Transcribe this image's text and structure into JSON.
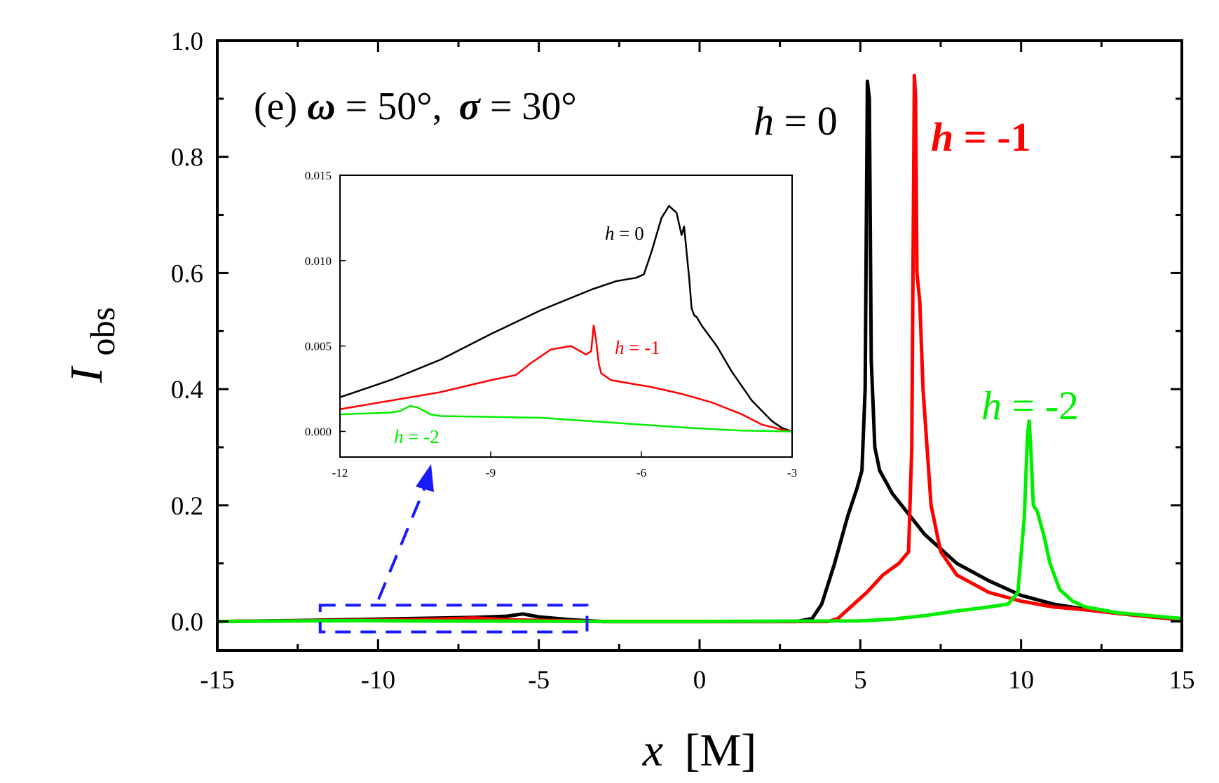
{
  "chart_data": {
    "type": "line",
    "title": "",
    "panel_label": {
      "prefix": "(e) ",
      "omega_symbol": "ω",
      "omega_value": "= 50°,",
      "sigma_symbol": "σ",
      "sigma_value": "= 30°"
    },
    "xlabel": {
      "variable": "x",
      "unit": "[M]"
    },
    "ylabel": {
      "variable": "I",
      "subscript": "obs"
    },
    "xlim": [
      -15,
      15
    ],
    "ylim": [
      -0.05,
      1.0
    ],
    "x_ticks": [
      -15,
      -10,
      -5,
      0,
      5,
      10,
      15
    ],
    "x_tick_labels": [
      "-15",
      "-10",
      "-5",
      "0",
      "5",
      "10",
      "15"
    ],
    "y_ticks": [
      0.0,
      0.2,
      0.4,
      0.6,
      0.8,
      1.0
    ],
    "y_tick_labels": [
      "0.0",
      "0.2",
      "0.4",
      "0.6",
      "0.8",
      "1.0"
    ],
    "grid": false,
    "series": [
      {
        "name": "h = 0",
        "label_variable": "h",
        "label_value": "= 0",
        "color": "#000000",
        "x": [
          -15,
          -12,
          -9,
          -7,
          -6,
          -5.5,
          -5,
          -4,
          -3,
          0,
          3,
          3.5,
          3.8,
          4.2,
          4.6,
          4.9,
          5.05,
          5.15,
          5.22,
          5.28,
          5.34,
          5.45,
          5.6,
          6,
          7,
          8,
          9,
          10,
          11,
          12,
          13,
          14,
          15
        ],
        "values": [
          0,
          0.002,
          0.005,
          0.007,
          0.009,
          0.013,
          0.008,
          0.003,
          0,
          0,
          0,
          0.005,
          0.03,
          0.1,
          0.18,
          0.23,
          0.26,
          0.4,
          0.93,
          0.9,
          0.45,
          0.3,
          0.26,
          0.22,
          0.15,
          0.1,
          0.07,
          0.045,
          0.03,
          0.021,
          0.014,
          0.008,
          0.003
        ]
      },
      {
        "name": "h = -1",
        "label_variable": "h",
        "label_value": "= -1",
        "color": "#ff0000",
        "x": [
          -15,
          -12,
          -9,
          -7.5,
          -7,
          -6,
          -4,
          -3,
          0,
          4,
          4.3,
          4.7,
          5.2,
          5.7,
          6.2,
          6.5,
          6.6,
          6.68,
          6.72,
          6.76,
          6.85,
          6.95,
          7.2,
          7.5,
          8,
          9,
          10,
          11,
          12,
          13,
          14,
          15
        ],
        "values": [
          0,
          0.0015,
          0.003,
          0.005,
          0.006,
          0.003,
          0.001,
          0,
          0,
          0,
          0.005,
          0.025,
          0.05,
          0.08,
          0.1,
          0.12,
          0.3,
          0.94,
          0.9,
          0.6,
          0.55,
          0.4,
          0.2,
          0.12,
          0.08,
          0.05,
          0.035,
          0.025,
          0.02,
          0.014,
          0.008,
          0.004
        ]
      },
      {
        "name": "h = -2",
        "label_variable": "h",
        "label_value": "= -2",
        "color": "#00ee00",
        "x": [
          -15,
          -12,
          -10.5,
          -9,
          -6,
          -3,
          0,
          5,
          6,
          7,
          8,
          9,
          9.6,
          9.9,
          10.1,
          10.2,
          10.25,
          10.3,
          10.38,
          10.5,
          10.7,
          10.9,
          11.2,
          11.6,
          12,
          13,
          14,
          15
        ],
        "values": [
          0,
          0.001,
          0.0015,
          0.0008,
          0.0005,
          0,
          0,
          0.001,
          0.004,
          0.01,
          0.018,
          0.025,
          0.03,
          0.05,
          0.18,
          0.32,
          0.345,
          0.3,
          0.2,
          0.19,
          0.15,
          0.1,
          0.055,
          0.035,
          0.025,
          0.015,
          0.01,
          0.005
        ]
      }
    ],
    "zoom_region": {
      "x_range": [
        -11.8,
        -3.5
      ],
      "y_range": [
        -0.018,
        0.028
      ],
      "arrow": "from zoom box to inset"
    },
    "inset": {
      "type": "line",
      "xlim": [
        -12,
        -3
      ],
      "ylim": [
        -0.0015,
        0.015
      ],
      "x_ticks": [
        -12,
        -9,
        -6,
        -3
      ],
      "x_tick_labels": [
        "-12",
        "-9",
        "-6",
        "-3"
      ],
      "y_ticks": [
        0.0,
        0.005,
        0.01,
        0.015
      ],
      "y_tick_labels": [
        "0.000",
        "0.005",
        "0.010",
        "0.015"
      ],
      "series": [
        {
          "name": "h = 0",
          "label_variable": "h",
          "label_value": "= 0",
          "color": "#000000",
          "x": [
            -12,
            -11,
            -10,
            -9,
            -8,
            -7,
            -6.5,
            -6.1,
            -5.95,
            -5.8,
            -5.6,
            -5.45,
            -5.3,
            -5.2,
            -5.15,
            -5.1,
            -5.05,
            -5.0,
            -4.95,
            -4.9,
            -4.8,
            -4.5,
            -4.2,
            -3.8,
            -3.4,
            -3.2,
            -3.0
          ],
          "values": [
            0.002,
            0.003,
            0.0042,
            0.0057,
            0.0071,
            0.0083,
            0.0088,
            0.009,
            0.0092,
            0.0105,
            0.0125,
            0.0132,
            0.0128,
            0.0115,
            0.012,
            0.0105,
            0.009,
            0.0072,
            0.0068,
            0.0067,
            0.0062,
            0.005,
            0.0035,
            0.0018,
            0.0006,
            0.0002,
            0
          ]
        },
        {
          "name": "h = -1",
          "label_variable": "h",
          "label_value": "= -1",
          "color": "#ff0000",
          "x": [
            -12,
            -11,
            -10,
            -9,
            -8.5,
            -8.2,
            -7.8,
            -7.4,
            -7.1,
            -7.0,
            -6.95,
            -6.9,
            -6.85,
            -6.8,
            -6.6,
            -6.2,
            -5.8,
            -5.2,
            -4.6,
            -4.0,
            -3.6,
            -3.2,
            -3.0
          ],
          "values": [
            0.0013,
            0.0018,
            0.0023,
            0.003,
            0.0033,
            0.004,
            0.0048,
            0.005,
            0.0045,
            0.0047,
            0.0062,
            0.0053,
            0.004,
            0.0034,
            0.003,
            0.0028,
            0.0026,
            0.0022,
            0.0017,
            0.001,
            0.0004,
            0.0001,
            0
          ]
        },
        {
          "name": "h = -2",
          "label_variable": "h",
          "label_value": "= -2",
          "color": "#00ee00",
          "x": [
            -12,
            -11,
            -10.8,
            -10.6,
            -10.45,
            -10.2,
            -10.0,
            -9.0,
            -8.0,
            -7.0,
            -6.0,
            -5.0,
            -4.0,
            -3.0
          ],
          "values": [
            0.001,
            0.0011,
            0.0012,
            0.0015,
            0.0014,
            0.001,
            0.0009,
            0.00085,
            0.0008,
            0.0006,
            0.0004,
            0.0002,
            5e-05,
            0
          ]
        }
      ]
    }
  }
}
